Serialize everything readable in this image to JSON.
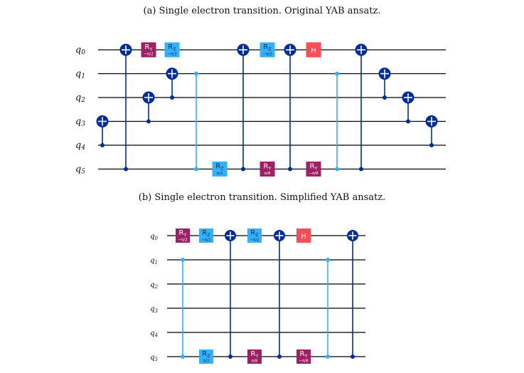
{
  "colors": {
    "ry": "#9E1F63",
    "rz": "#33B1FF",
    "h": "#FA4D56",
    "cnot": "#002D9C",
    "cz": "#33B1FF",
    "wire": "#000000"
  },
  "circuits": [
    {
      "id": "a",
      "caption": "(a) Single electron transition. Original YAB ansatz.",
      "qubits": [
        "q0",
        "q1",
        "q2",
        "q3",
        "q4",
        "q5"
      ],
      "gates": [
        {
          "type": "cnot",
          "control": 4,
          "target": 3
        },
        {
          "type": "cnot",
          "control": 5,
          "target": 0
        },
        {
          "type": "ry",
          "qubit": 0,
          "label": "RY",
          "param": "−π/2"
        },
        {
          "type": "cnot",
          "control": 3,
          "target": 2
        },
        {
          "type": "rz",
          "qubit": 0,
          "label": "RZ",
          "param": "−π/2"
        },
        {
          "type": "cnot",
          "control": 2,
          "target": 1
        },
        {
          "type": "cz",
          "qubits": [
            1,
            5
          ]
        },
        {
          "type": "rz",
          "qubit": 5,
          "label": "RZ",
          "param": "π/2"
        },
        {
          "type": "cnot",
          "control": 5,
          "target": 0
        },
        {
          "type": "rz",
          "qubit": 0,
          "label": "RZ",
          "param": "−π/2"
        },
        {
          "type": "ry",
          "qubit": 5,
          "label": "RY",
          "param": "π/8"
        },
        {
          "type": "cnot",
          "control": 5,
          "target": 0
        },
        {
          "type": "h",
          "qubit": 0,
          "label": "H"
        },
        {
          "type": "ry",
          "qubit": 5,
          "label": "RY",
          "param": "−π/8"
        },
        {
          "type": "cz",
          "qubits": [
            1,
            5
          ]
        },
        {
          "type": "cnot",
          "control": 5,
          "target": 0
        },
        {
          "type": "cnot",
          "control": 2,
          "target": 1
        },
        {
          "type": "cnot",
          "control": 3,
          "target": 2
        },
        {
          "type": "cnot",
          "control": 4,
          "target": 3
        }
      ]
    },
    {
      "id": "b",
      "caption": "(b) Single electron transition. Simplified YAB ansatz.",
      "qubits": [
        "q0",
        "q1",
        "q2",
        "q3",
        "q4",
        "q5"
      ],
      "gates": [
        {
          "type": "ry",
          "qubit": 0,
          "label": "RY",
          "param": "−π/2"
        },
        {
          "type": "cz",
          "qubits": [
            1,
            5
          ]
        },
        {
          "type": "rz",
          "qubit": 0,
          "label": "RZ",
          "param": "−π/2"
        },
        {
          "type": "rz",
          "qubit": 5,
          "label": "RZ",
          "param": "π/2"
        },
        {
          "type": "cnot",
          "control": 5,
          "target": 0
        },
        {
          "type": "rz",
          "qubit": 0,
          "label": "RZ",
          "param": "−π/2"
        },
        {
          "type": "ry",
          "qubit": 5,
          "label": "RY",
          "param": "π/8"
        },
        {
          "type": "cnot",
          "control": 5,
          "target": 0
        },
        {
          "type": "h",
          "qubit": 0,
          "label": "H"
        },
        {
          "type": "ry",
          "qubit": 5,
          "label": "RY",
          "param": "−π/8"
        },
        {
          "type": "cz",
          "qubits": [
            1,
            5
          ]
        },
        {
          "type": "cnot",
          "control": 5,
          "target": 0
        }
      ]
    }
  ]
}
